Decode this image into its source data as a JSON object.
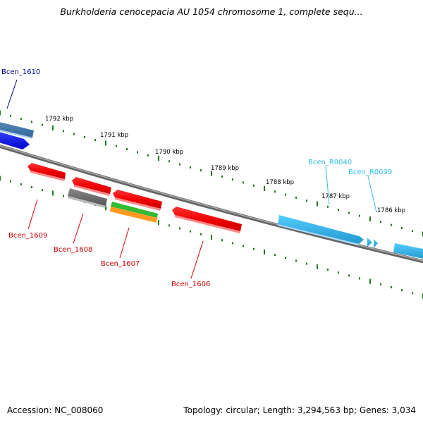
{
  "title": "Burkholderia cenocepacia AU 1054 chromosome 1, complete sequ...",
  "footer": {
    "accession": "Accession: NC_008060",
    "summary": "Topology: circular; Length: 3,294,563 bp; Genes: 3,034"
  },
  "colors": {
    "backbone": "#777777",
    "tick": "#1e7a1e",
    "red_label": "#cc0000",
    "dark_blue_label": "#00008b",
    "cyan_label": "#33bbee"
  },
  "kbp_labels": [
    "1792 kbp",
    "1791 kbp",
    "1790 kbp",
    "1789 kbp",
    "1788 kbp",
    "1787 kbp",
    "1786 kbp"
  ],
  "genes": [
    {
      "label": "Bcen_1610",
      "color": "dark_blue"
    },
    {
      "label": "Bcen_1609",
      "color": "red"
    },
    {
      "label": "Bcen_1608",
      "color": "red"
    },
    {
      "label": "Bcen_1607",
      "color": "red"
    },
    {
      "label": "Bcen_1606",
      "color": "red"
    },
    {
      "label": "Bcen_R0040",
      "color": "cyan"
    },
    {
      "label": "Bcen_R0039",
      "color": "cyan"
    }
  ]
}
